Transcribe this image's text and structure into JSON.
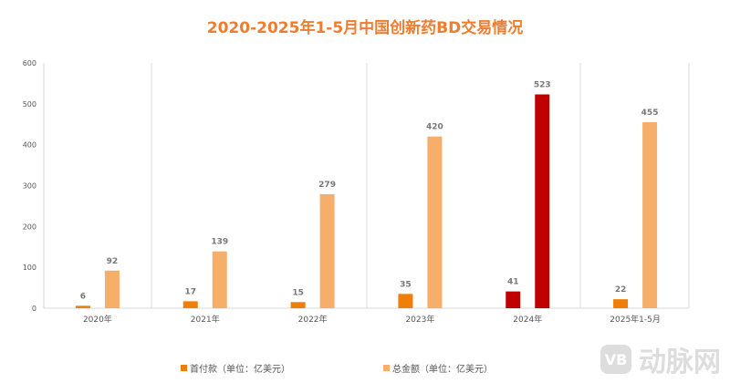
{
  "chart_data": {
    "type": "bar",
    "title": "2020-2025年1-5月中国创新药BD交易情况",
    "categories": [
      "2020年",
      "2021年",
      "2022年",
      "2023年",
      "2024年",
      "2025年1-5月"
    ],
    "series": [
      {
        "name": "首付款（单位：亿美元）",
        "values": [
          6,
          17,
          15,
          35,
          41,
          22
        ],
        "color": "#F07F09"
      },
      {
        "name": "总金额（单位：亿美元）",
        "values": [
          92,
          139,
          279,
          420,
          523,
          455
        ],
        "color": "#F5AF6B"
      }
    ],
    "highlight": {
      "category": "2024年",
      "color": "#C00000"
    },
    "yticks": [
      0,
      100,
      200,
      300,
      400,
      500,
      600
    ],
    "ylim": [
      0,
      600
    ],
    "legend": "bottom"
  },
  "watermark": {
    "text": "动脉网",
    "logo": "VB"
  }
}
